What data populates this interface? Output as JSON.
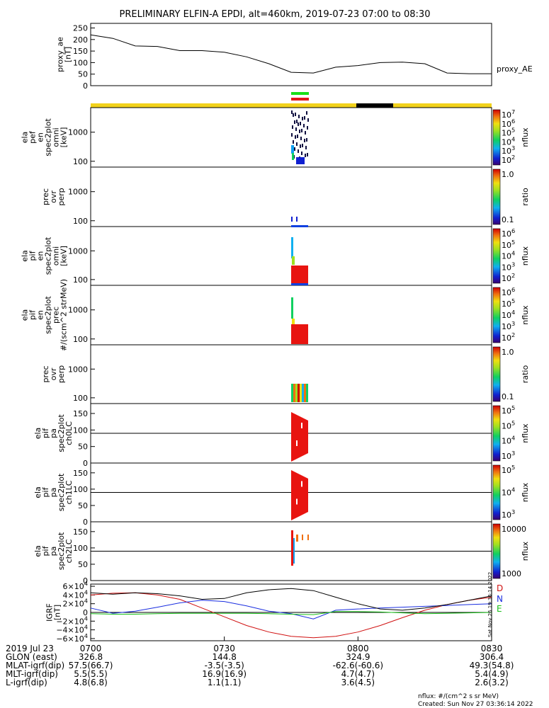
{
  "title": "PRELIMINARY ELFIN-A EPDI, alt=460km, 2019-07-23 07:00 to 08:30",
  "colors": {
    "attitude_bar": "#f2d21c",
    "attitude_bar_dark": "#000000",
    "fgs_green": "#18e018",
    "fgs_red": "#e0181a",
    "component_D": "#d01010",
    "component_N": "#1a2ee0",
    "component_E": "#18c018"
  },
  "chart_data": [
    {
      "type": "line",
      "ylabel_lines": [
        "proxy_ae",
        "[nT]"
      ],
      "yticks": [
        0,
        50,
        100,
        150,
        200,
        250
      ],
      "ylim": [
        0,
        270
      ],
      "legend": "proxy_AE",
      "x_minutes": [
        0,
        5,
        10,
        15,
        20,
        25,
        30,
        35,
        40,
        45,
        50,
        55,
        60,
        65,
        70,
        75,
        80,
        85,
        90
      ],
      "values": [
        220,
        205,
        172,
        170,
        152,
        152,
        145,
        125,
        95,
        58,
        55,
        80,
        87,
        100,
        102,
        95,
        55,
        52,
        52
      ]
    },
    {
      "type": "heatmap",
      "name": "ela pef en spec2plot omni",
      "ylabel_lines": [
        "ela",
        "pef",
        "en",
        "spec2plot",
        "omni",
        "[keV]"
      ],
      "scale": "log",
      "yticks": [
        100,
        1000
      ],
      "ylim": [
        63,
        7000
      ],
      "colorbar": {
        "label": "nflux",
        "ticks": [
          "10^7",
          "10^6",
          "10^5",
          "10^4",
          "10^3",
          "10^2"
        ]
      }
    },
    {
      "type": "heatmap",
      "name": "prec ovr perp",
      "ylabel_lines": [
        "prec",
        "ovr",
        "perp"
      ],
      "scale": "log",
      "yticks": [
        100,
        1000
      ],
      "ylim": [
        63,
        7000
      ],
      "colorbar": {
        "label": "ratio",
        "ticks": [
          "1.0",
          "0.1"
        ]
      }
    },
    {
      "type": "heatmap",
      "name": "ela pif en spec2plot omni",
      "ylabel_lines": [
        "ela",
        "pif",
        "en",
        "spec2plot",
        "omni",
        "[keV]"
      ],
      "scale": "log",
      "yticks": [
        100,
        1000
      ],
      "ylim": [
        63,
        7000
      ],
      "colorbar": {
        "label": "nflux",
        "ticks": [
          "10^6",
          "10^5",
          "10^4",
          "10^3",
          "10^2"
        ]
      }
    },
    {
      "type": "heatmap",
      "name": "ela pif en spec2plot prec",
      "ylabel_lines": [
        "ela",
        "pif",
        "en",
        "spec2plot",
        "prec",
        "#/(scm^2 strMeV)"
      ],
      "scale": "log",
      "yticks": [
        100,
        1000
      ],
      "ylim": [
        63,
        7000
      ],
      "colorbar": {
        "label": "nflux",
        "ticks": [
          "10^6",
          "10^5",
          "10^4",
          "10^3",
          "10^2"
        ]
      }
    },
    {
      "type": "heatmap",
      "name": "prec ovr perp",
      "ylabel_lines": [
        "prec",
        "ovr",
        "perp"
      ],
      "scale": "log",
      "yticks": [
        100,
        1000
      ],
      "ylim": [
        63,
        7000
      ],
      "colorbar": {
        "label": "ratio",
        "ticks": [
          "1.0",
          "0.1"
        ]
      }
    },
    {
      "type": "heatmap",
      "name": "ela pif pa spec2plot ch0LC",
      "ylabel_lines": [
        "ela",
        "pif",
        "pa",
        "spec2plot",
        "ch0LC"
      ],
      "scale": "linear",
      "yticks": [
        0,
        50,
        100,
        150
      ],
      "ylim": [
        0,
        180
      ],
      "colorbar": {
        "label": "nflux",
        "ticks": [
          "10^5",
          "10^5",
          "10^4",
          "10^3"
        ]
      }
    },
    {
      "type": "heatmap",
      "name": "ela pif pa spec2plot ch1LC",
      "ylabel_lines": [
        "ela",
        "pif",
        "pa",
        "spec2plot",
        "ch1LC"
      ],
      "scale": "linear",
      "yticks": [
        0,
        50,
        100,
        150
      ],
      "ylim": [
        0,
        180
      ],
      "colorbar": {
        "label": "nflux",
        "ticks": [
          "10^5",
          "10^4",
          "10^3"
        ]
      }
    },
    {
      "type": "heatmap",
      "name": "ela pif pa spec2plot ch2LC",
      "ylabel_lines": [
        "ela",
        "pif",
        "pa",
        "spec2plot",
        "ch2LC"
      ],
      "scale": "linear",
      "yticks": [
        0,
        50,
        100,
        150
      ],
      "ylim": [
        0,
        180
      ],
      "colorbar": {
        "label": "nflux",
        "ticks": [
          "10000",
          "1000"
        ]
      }
    },
    {
      "type": "line",
      "ylabel_lines": [
        "IGRF",
        "[nT]"
      ],
      "ytick_labels": [
        "6×10^4",
        "4×10^4",
        "2×10^4",
        "0",
        "−2×10^4",
        "−4×10^4",
        "−6×10^4"
      ],
      "ylim": [
        -65000,
        65000
      ],
      "x_minutes": [
        0,
        5,
        10,
        15,
        20,
        25,
        30,
        35,
        40,
        45,
        50,
        55,
        60,
        65,
        70,
        75,
        80,
        85,
        90
      ],
      "series": [
        {
          "name": "D",
          "values": [
            40000,
            44000,
            45000,
            40000,
            30000,
            10000,
            -10000,
            -30000,
            -45000,
            -55000,
            -58000,
            -55000,
            -45000,
            -30000,
            -12000,
            5000,
            18000,
            28000,
            35000
          ]
        },
        {
          "name": "N",
          "values": [
            10000,
            -2000,
            3000,
            12000,
            22000,
            28000,
            25000,
            15000,
            3000,
            -3000,
            -15000,
            5000,
            8000,
            10000,
            12000,
            14000,
            16000,
            18000,
            20000
          ]
        },
        {
          "name": "E",
          "values": [
            -3000,
            -4000,
            -4000,
            -3000,
            -2000,
            -2000,
            -2000,
            -2000,
            -3000,
            -4000,
            -5000,
            2000,
            2000,
            1000,
            -1000,
            -3000,
            -2000,
            -1000,
            0
          ]
        },
        {
          "name": "",
          "values": [
            45000,
            42000,
            45000,
            43000,
            38000,
            30000,
            32000,
            45000,
            52000,
            55000,
            50000,
            35000,
            20000,
            8000,
            5000,
            10000,
            18000,
            28000,
            38000
          ]
        }
      ]
    }
  ],
  "time_axis": {
    "ticks": [
      "0700",
      "0730",
      "0800",
      "0830"
    ],
    "rows": [
      {
        "label": "2019 Jul 23",
        "values": [
          "",
          "",
          "",
          ""
        ]
      },
      {
        "label": "GLON (east)",
        "values": [
          "326.8",
          "144.8",
          "324.9",
          "306.4"
        ]
      },
      {
        "label": "MLAT-igrf(dip)",
        "values": [
          "57.5(66.7)",
          "-3.5(-3.5)",
          "-62.6(-60.6)",
          "49.3(54.8)"
        ]
      },
      {
        "label": "MLT-igrf(dip)",
        "values": [
          "5.5(5.5)",
          "16.9(16.9)",
          "4.7(4.7)",
          "5.4(4.9)"
        ]
      },
      {
        "label": "L-igrf(dip)",
        "values": [
          "4.8(6.8)",
          "1.1(1.1)",
          "3.6(4.5)",
          "2.6(3.2)"
        ]
      }
    ]
  },
  "footer": {
    "units": "nflux: #/(cm^2 s sr MeV)",
    "created": "Created: Sun Nov 27 03:36:14 2022",
    "side_stamp": "Sat Nov 26 19:36:14 2022"
  }
}
